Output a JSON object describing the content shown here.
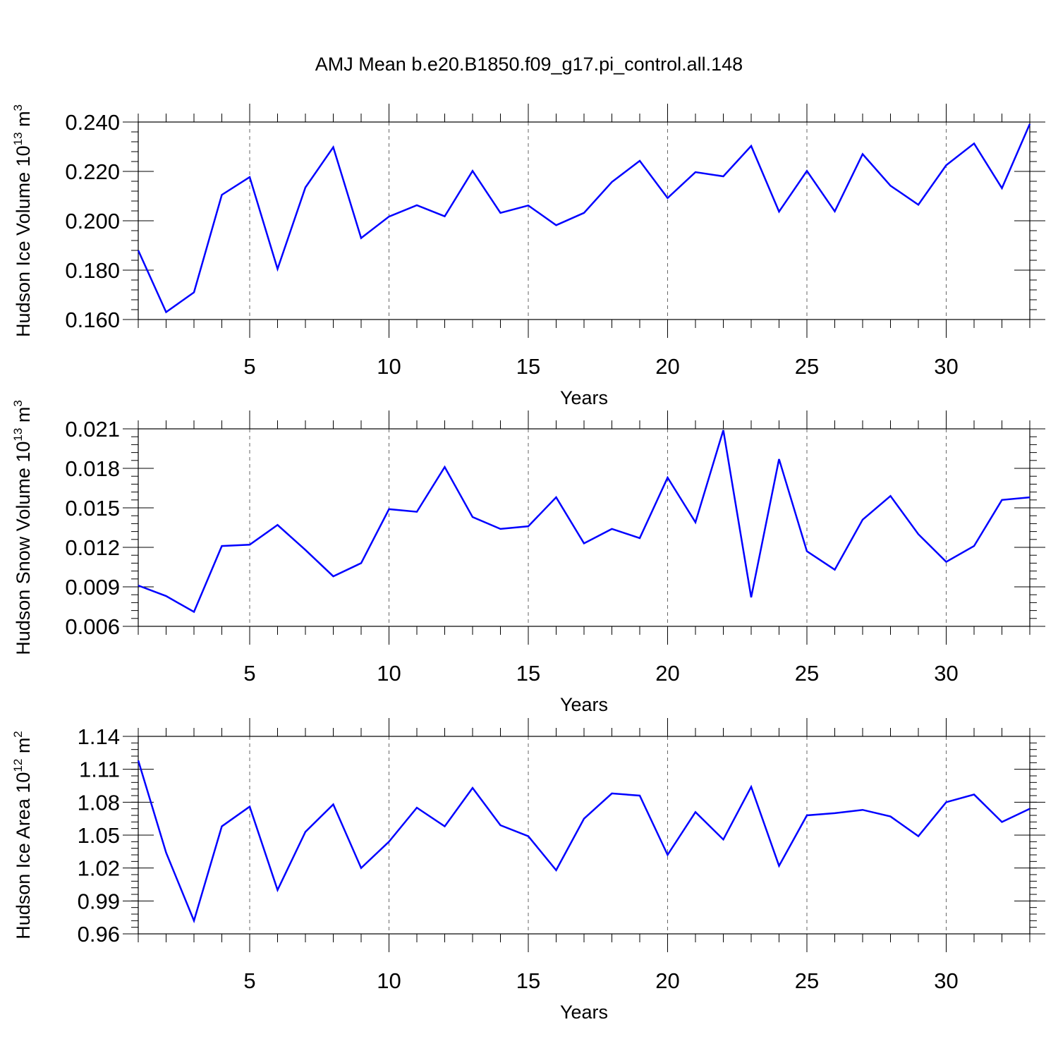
{
  "title": "AMJ Mean b.e20.B1850.f09_g17.pi_control.all.148",
  "line_color": "#0000ff",
  "chart_data": [
    {
      "type": "line",
      "title": "AMJ Mean b.e20.B1850.f09_g17.pi_control.all.148",
      "xlabel": "Years",
      "ylabel": "Hudson Ice Volume 10^13 m^3",
      "ylabel_parts": {
        "main": "Hudson Ice Volume 10",
        "exp1": "13",
        "unit": " m",
        "exp2": "3"
      },
      "xlim": [
        1,
        33
      ],
      "ylim": [
        0.16,
        0.24
      ],
      "x_major_ticks": [
        5,
        10,
        15,
        20,
        25,
        30
      ],
      "x_tick_labels": [
        "5",
        "10",
        "15",
        "20",
        "25",
        "30"
      ],
      "y_major_ticks": [
        0.16,
        0.18,
        0.2,
        0.22,
        0.24
      ],
      "y_tick_labels": [
        "0.160",
        "0.180",
        "0.200",
        "0.220",
        "0.240"
      ],
      "y_minor_step": 0.004,
      "grid": "vertical dashed at major x ticks",
      "x": [
        1,
        2,
        3,
        4,
        5,
        6,
        7,
        8,
        9,
        10,
        11,
        12,
        13,
        14,
        15,
        16,
        17,
        18,
        19,
        20,
        21,
        22,
        23,
        24,
        25,
        26,
        27,
        28,
        29,
        30,
        31,
        32,
        33
      ],
      "values": [
        0.188,
        0.163,
        0.171,
        0.2105,
        0.2177,
        0.1805,
        0.2135,
        0.2298,
        0.193,
        0.2017,
        0.2063,
        0.2018,
        0.2202,
        0.2032,
        0.2062,
        0.1982,
        0.2032,
        0.2157,
        0.2243,
        0.2092,
        0.2197,
        0.218,
        0.2303,
        0.2037,
        0.2202,
        0.2038,
        0.227,
        0.2142,
        0.2065,
        0.2225,
        0.2313,
        0.2132,
        0.2392
      ]
    },
    {
      "type": "line",
      "xlabel": "Years",
      "ylabel": "Hudson Snow Volume 10^13 m^3",
      "ylabel_parts": {
        "main": "Hudson Snow Volume 10",
        "exp1": "13",
        "unit": " m",
        "exp2": "3"
      },
      "xlim": [
        1,
        33
      ],
      "ylim": [
        0.006,
        0.021
      ],
      "x_major_ticks": [
        5,
        10,
        15,
        20,
        25,
        30
      ],
      "x_tick_labels": [
        "5",
        "10",
        "15",
        "20",
        "25",
        "30"
      ],
      "y_major_ticks": [
        0.006,
        0.009,
        0.012,
        0.015,
        0.018,
        0.021
      ],
      "y_tick_labels": [
        "0.006",
        "0.009",
        "0.012",
        "0.015",
        "0.018",
        "0.021"
      ],
      "y_minor_step": 0.0006,
      "grid": "vertical dashed at major x ticks",
      "x": [
        1,
        2,
        3,
        4,
        5,
        6,
        7,
        8,
        9,
        10,
        11,
        12,
        13,
        14,
        15,
        16,
        17,
        18,
        19,
        20,
        21,
        22,
        23,
        24,
        25,
        26,
        27,
        28,
        29,
        30,
        31,
        32,
        33
      ],
      "values": [
        0.0091,
        0.0083,
        0.0071,
        0.0121,
        0.0122,
        0.0137,
        0.0118,
        0.0098,
        0.0108,
        0.0149,
        0.0147,
        0.0181,
        0.0143,
        0.0134,
        0.0136,
        0.0158,
        0.0123,
        0.0134,
        0.0127,
        0.0173,
        0.0139,
        0.0209,
        0.0082,
        0.0187,
        0.0117,
        0.0103,
        0.0141,
        0.0159,
        0.013,
        0.0109,
        0.0121,
        0.0156,
        0.0158
      ]
    },
    {
      "type": "line",
      "xlabel": "Years",
      "ylabel": "Hudson Ice Area 10^12 m^2",
      "ylabel_parts": {
        "main": "Hudson Ice Area 10",
        "exp1": "12",
        "unit": " m",
        "exp2": "2"
      },
      "xlim": [
        1,
        33
      ],
      "ylim": [
        0.96,
        1.14
      ],
      "x_major_ticks": [
        5,
        10,
        15,
        20,
        25,
        30
      ],
      "x_tick_labels": [
        "5",
        "10",
        "15",
        "20",
        "25",
        "30"
      ],
      "y_major_ticks": [
        0.96,
        0.99,
        1.02,
        1.05,
        1.08,
        1.11,
        1.14
      ],
      "y_tick_labels": [
        "0.96",
        "0.99",
        "1.02",
        "1.05",
        "1.08",
        "1.11",
        "1.14"
      ],
      "y_minor_step": 0.006,
      "grid": "vertical dashed at major x ticks",
      "x": [
        1,
        2,
        3,
        4,
        5,
        6,
        7,
        8,
        9,
        10,
        11,
        12,
        13,
        14,
        15,
        16,
        17,
        18,
        19,
        20,
        21,
        22,
        23,
        24,
        25,
        26,
        27,
        28,
        29,
        30,
        31,
        32,
        33
      ],
      "values": [
        1.118,
        1.034,
        0.972,
        1.058,
        1.076,
        1.0,
        1.053,
        1.078,
        1.02,
        1.044,
        1.075,
        1.058,
        1.093,
        1.059,
        1.049,
        1.018,
        1.065,
        1.088,
        1.086,
        1.032,
        1.071,
        1.046,
        1.094,
        1.022,
        1.068,
        1.07,
        1.073,
        1.067,
        1.049,
        1.08,
        1.087,
        1.062,
        1.074
      ]
    }
  ]
}
